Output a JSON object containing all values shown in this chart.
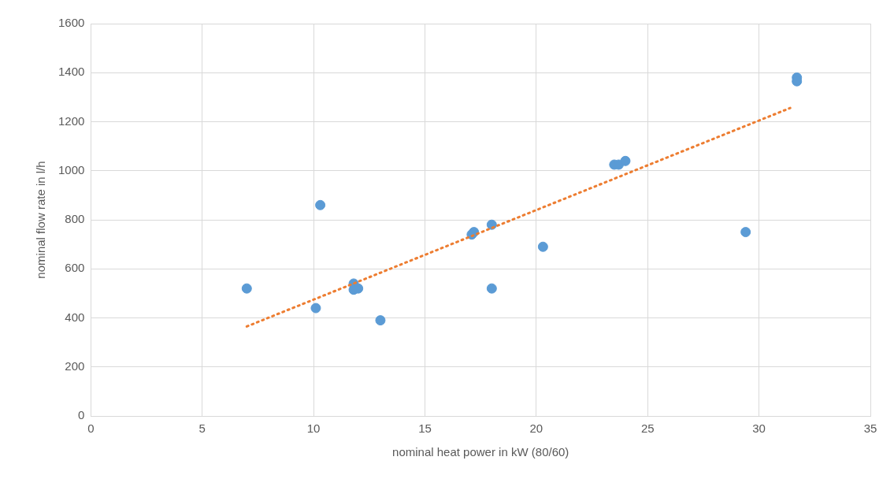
{
  "chart_data": {
    "type": "scatter",
    "xlabel": "nominal heat power in kW (80/60)",
    "ylabel": "nominal flow rate in l/h",
    "xlim": [
      0,
      35
    ],
    "xticks": [
      0,
      5,
      10,
      15,
      20,
      25,
      30,
      35
    ],
    "ylim": [
      0,
      1600
    ],
    "yticks": [
      0,
      200,
      400,
      600,
      800,
      1000,
      1200,
      1400,
      1600
    ],
    "grid": true,
    "legend": false,
    "marker": "circle",
    "series": [
      {
        "type": "scatter",
        "color": "#5b9bd5",
        "x": [
          7,
          10.1,
          10.3,
          11.8,
          11.8,
          12,
          13,
          17.1,
          17.2,
          18,
          18,
          20.3,
          23.5,
          23.7,
          24,
          29.4,
          31.7,
          31.7
        ],
        "values": [
          520,
          440,
          860,
          540,
          515,
          520,
          390,
          740,
          750,
          780,
          520,
          690,
          1025,
          1025,
          1040,
          750,
          1380,
          1365
        ]
      },
      {
        "type": "line",
        "color": "#ed7d31",
        "line_style": "dotted",
        "marker": "none",
        "x": [
          7,
          31.4
        ],
        "values": [
          365,
          1256
        ]
      }
    ]
  }
}
